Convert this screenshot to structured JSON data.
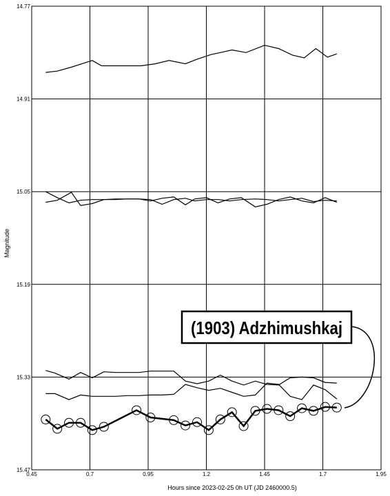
{
  "chart_data": {
    "type": "line",
    "title": "",
    "xlabel": "Hours since 2023-02-25 0h UT (JD 2460000.5)",
    "ylabel": "Magnitude",
    "xlim": [
      0.45,
      1.95
    ],
    "ylim": [
      14.77,
      15.47
    ],
    "y_inverted": true,
    "grid": true,
    "xticks": [
      "0.45",
      "0.7",
      "0.95",
      "1.2",
      "1.45",
      "1.7",
      "1.95"
    ],
    "yticks": [
      "14.77",
      "14.91",
      "15.05",
      "15.19",
      "15.33",
      "15.47"
    ],
    "annotation": "(1903) Adzhimushkaj",
    "series": [
      {
        "style": "thin",
        "x": [
          0.51,
          0.56,
          0.62,
          0.71,
          0.75,
          0.81,
          0.92,
          0.98,
          1.04,
          1.11,
          1.16,
          1.22,
          1.26,
          1.31,
          1.37,
          1.45,
          1.51,
          1.57,
          1.62,
          1.67,
          1.72,
          1.76
        ],
        "y": [
          14.87,
          14.868,
          14.862,
          14.852,
          14.86,
          14.86,
          14.86,
          14.857,
          14.852,
          14.857,
          14.85,
          14.843,
          14.84,
          14.836,
          14.84,
          14.829,
          14.834,
          14.844,
          14.848,
          14.834,
          14.847,
          14.842
        ]
      },
      {
        "style": "thin",
        "x": [
          0.51,
          0.56,
          0.61,
          0.66,
          0.71,
          0.76,
          0.81,
          0.86,
          0.91,
          0.96,
          1.01,
          1.06,
          1.11,
          1.15,
          1.2,
          1.25,
          1.3,
          1.35,
          1.41,
          1.46,
          1.51,
          1.56,
          1.61,
          1.66,
          1.71,
          1.76
        ],
        "y": [
          15.05,
          15.059,
          15.067,
          15.063,
          15.062,
          15.062,
          15.062,
          15.061,
          15.061,
          15.062,
          15.069,
          15.062,
          15.06,
          15.064,
          15.062,
          15.062,
          15.064,
          15.062,
          15.061,
          15.062,
          15.064,
          15.062,
          15.06,
          15.065,
          15.063,
          15.064
        ]
      },
      {
        "style": "thin",
        "x": [
          0.51,
          0.56,
          0.62,
          0.66,
          0.71,
          0.76,
          0.81,
          0.86,
          0.91,
          0.96,
          1.01,
          1.06,
          1.11,
          1.15,
          1.2,
          1.25,
          1.3,
          1.35,
          1.41,
          1.46,
          1.51,
          1.56,
          1.61,
          1.66,
          1.71,
          1.76
        ],
        "y": [
          15.066,
          15.063,
          15.051,
          15.071,
          15.068,
          15.062,
          15.061,
          15.061,
          15.061,
          15.064,
          15.06,
          15.058,
          15.07,
          15.061,
          15.059,
          15.067,
          15.061,
          15.059,
          15.073,
          15.069,
          15.062,
          15.058,
          15.064,
          15.067,
          15.059,
          15.066
        ]
      },
      {
        "style": "thin",
        "x": [
          0.51,
          0.55,
          0.61,
          0.66,
          0.71,
          0.76,
          0.81,
          0.86,
          0.91,
          0.96,
          1.01,
          1.06,
          1.11,
          1.16,
          1.21,
          1.26,
          1.31,
          1.36,
          1.41,
          1.46,
          1.51,
          1.56,
          1.61,
          1.66,
          1.71,
          1.76
        ],
        "y": [
          15.32,
          15.324,
          15.333,
          15.323,
          15.331,
          15.322,
          15.323,
          15.323,
          15.323,
          15.321,
          15.321,
          15.321,
          15.336,
          15.34,
          15.336,
          15.327,
          15.336,
          15.342,
          15.336,
          15.341,
          15.342,
          15.331,
          15.33,
          15.331,
          15.338,
          15.339
        ]
      },
      {
        "style": "thin",
        "x": [
          0.51,
          0.55,
          0.61,
          0.66,
          0.71,
          0.76,
          0.81,
          0.86,
          0.91,
          0.96,
          1.01,
          1.06,
          1.11,
          1.16,
          1.21,
          1.26,
          1.31,
          1.36,
          1.41,
          1.46,
          1.51,
          1.56,
          1.61,
          1.66,
          1.71,
          1.76
        ],
        "y": [
          15.355,
          15.355,
          15.364,
          15.357,
          15.359,
          15.359,
          15.359,
          15.358,
          15.358,
          15.357,
          15.357,
          15.356,
          15.341,
          15.346,
          15.35,
          15.347,
          15.353,
          15.359,
          15.357,
          15.339,
          15.341,
          15.359,
          15.364,
          15.342,
          15.349,
          15.363
        ]
      },
      {
        "style": "thick",
        "markers": true,
        "x": [
          0.51,
          0.56,
          0.61,
          0.66,
          0.71,
          0.76,
          0.9,
          0.96,
          1.06,
          1.11,
          1.16,
          1.21,
          1.26,
          1.31,
          1.36,
          1.41,
          1.46,
          1.51,
          1.56,
          1.61,
          1.66,
          1.71,
          1.76
        ],
        "y": [
          15.394,
          15.408,
          15.399,
          15.399,
          15.41,
          15.405,
          15.38,
          15.391,
          15.395,
          15.403,
          15.398,
          15.41,
          15.394,
          15.383,
          15.404,
          15.381,
          15.378,
          15.38,
          15.389,
          15.377,
          15.381,
          15.375,
          15.376
        ]
      }
    ]
  }
}
